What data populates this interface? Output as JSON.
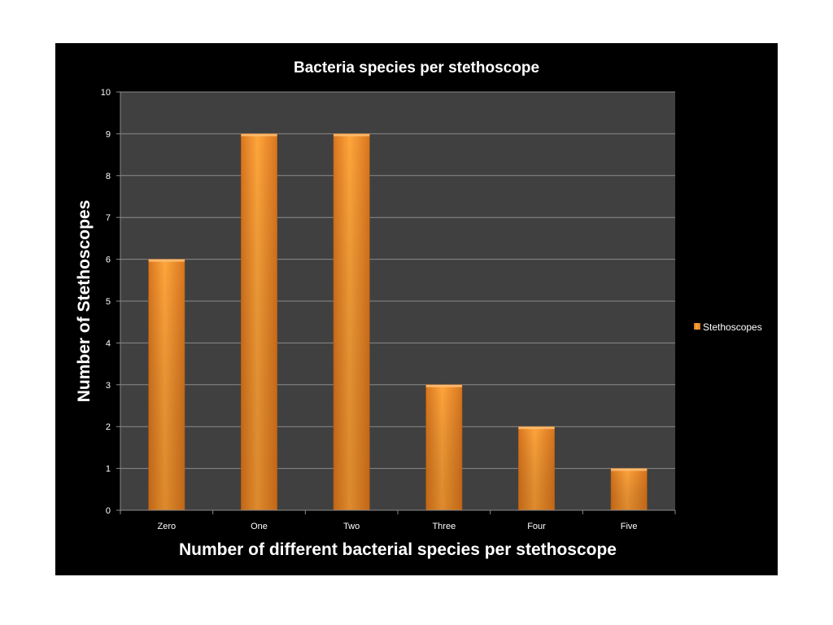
{
  "chart_data": {
    "type": "bar",
    "title": "Bacteria species per stethoscope",
    "xlabel": "Number of different bacterial species per stethoscope",
    "ylabel": "Number of Stethoscopes",
    "categories": [
      "Zero",
      "One",
      "Two",
      "Three",
      "Four",
      "Five"
    ],
    "series": [
      {
        "name": "Stethoscopes",
        "values": [
          6,
          9,
          9,
          3,
          2,
          1
        ]
      }
    ],
    "ylim": [
      0,
      10
    ],
    "yticks": [
      0,
      1,
      2,
      3,
      4,
      5,
      6,
      7,
      8,
      9,
      10
    ],
    "grid": true,
    "legend": "right",
    "colors": {
      "chart_background": "#000000",
      "plot_background": "#404040",
      "bar": "#f0952a",
      "text": "#ffffff"
    }
  }
}
